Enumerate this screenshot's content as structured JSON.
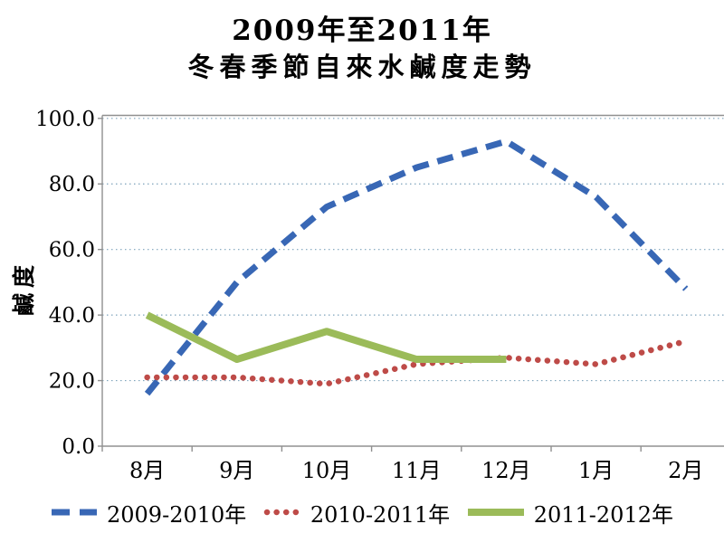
{
  "chart_data": {
    "type": "line",
    "title_line1": "2009年至2011年",
    "title_line2": "冬春季節自來水鹹度走勢",
    "ylabel": "鹹度",
    "xlabel": "",
    "ylim": [
      0,
      100
    ],
    "y_tick_step": 20,
    "y_ticks": [
      "0.0",
      "20.0",
      "40.0",
      "60.0",
      "80.0",
      "100.0"
    ],
    "categories": [
      "8月",
      "9月",
      "10月",
      "11月",
      "12月",
      "1月",
      "2月"
    ],
    "grid": "horizontal-dotted",
    "legend_position": "bottom",
    "series": [
      {
        "name": "2009-2010年",
        "style": "dashed",
        "color": "#3867B5",
        "width": 7,
        "values": [
          16,
          50,
          73,
          85,
          93,
          76,
          48
        ]
      },
      {
        "name": "2010-2011年",
        "style": "dotted",
        "color": "#BE4B48",
        "width": 6.5,
        "values": [
          21,
          21,
          19,
          25,
          27,
          25,
          32
        ]
      },
      {
        "name": "2011-2012年",
        "style": "solid",
        "color": "#9BBB59",
        "width": 8,
        "values": [
          40,
          26.5,
          35,
          26.5,
          26.5,
          null,
          null
        ]
      }
    ],
    "colors": {
      "axis": "#909090",
      "gridline": "#7FA4BC",
      "text": "#000000",
      "background": "#FFFFFF"
    }
  }
}
